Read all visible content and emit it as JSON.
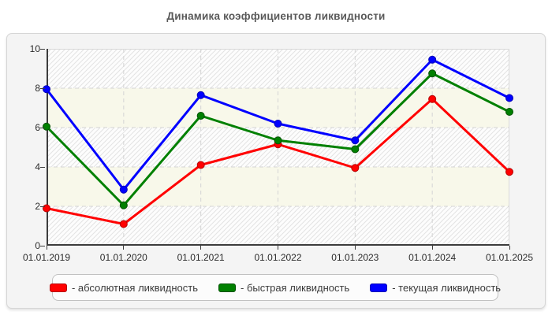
{
  "title": "Динамика коэффициентов ликвидности",
  "colors": {
    "title": "#595959",
    "panel_bg": "#f4f4f4",
    "panel_border": "#d6d6d6",
    "plot_band_plain": "#f8f8ea",
    "plot_band_hatch_base": "#fdfdfd",
    "hatch_line": "#e3e3e3",
    "gridline": "#d4d4d4",
    "plot_edge": "#d9d9d9",
    "axis": "#3c3c3c",
    "legend_bg": "#fcfcfc",
    "legend_border": "#c0c0c0"
  },
  "chart_data": {
    "type": "line",
    "title": "Динамика коэффициентов ликвидности",
    "categories": [
      "01.01.2019",
      "01.01.2020",
      "01.01.2021",
      "01.01.2022",
      "01.01.2023",
      "01.01.2024",
      "01.01.2025"
    ],
    "series": [
      {
        "name": "абсолютная ликвидность",
        "key": "absolute-liquidity",
        "legend_label": "- абсолютная ликвидность",
        "color": "#ff0000",
        "edge": "#b40000",
        "values": [
          1.9,
          1.1,
          4.1,
          5.15,
          3.95,
          7.45,
          3.75
        ]
      },
      {
        "name": "быстрая ликвидность",
        "key": "quick-liquidity",
        "legend_label": "- быстрая ликвидность",
        "color": "#008000",
        "edge": "#005000",
        "values": [
          6.05,
          2.05,
          6.6,
          5.35,
          4.9,
          8.75,
          6.8
        ]
      },
      {
        "name": "текущая ликвидность",
        "key": "current-liquidity",
        "legend_label": "- текущая ликвидность",
        "color": "#0000ff",
        "edge": "#0000b4",
        "values": [
          7.95,
          2.85,
          7.65,
          6.2,
          5.35,
          9.45,
          7.5
        ]
      }
    ],
    "xlabel": "",
    "ylabel": "",
    "ylim": [
      0,
      10
    ],
    "yticks": [
      0,
      2,
      4,
      6,
      8,
      10
    ],
    "grid": true,
    "grid_style": "dashed",
    "legend_position": "bottom"
  }
}
